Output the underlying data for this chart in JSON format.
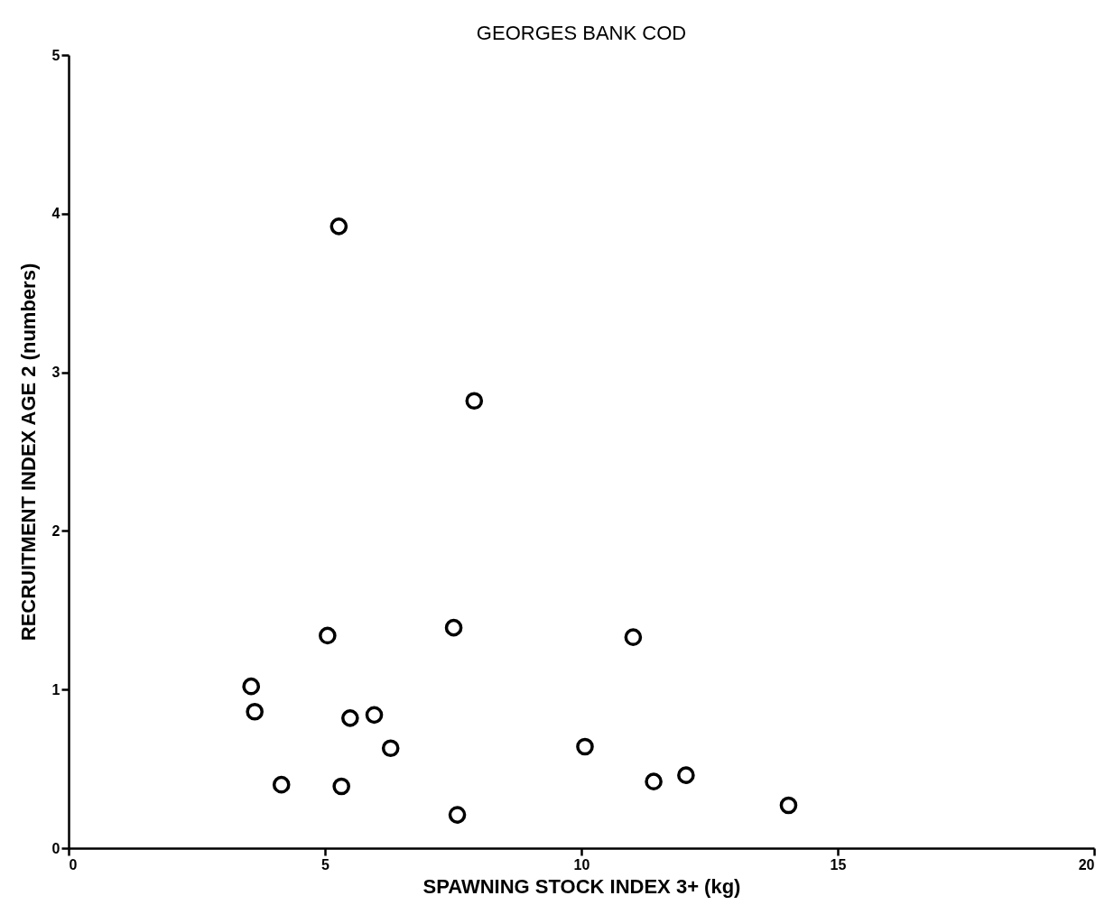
{
  "chart_data": {
    "type": "scatter",
    "title": "GEORGES BANK COD",
    "xlabel": "SPAWNING STOCK INDEX 3+ (kg)",
    "ylabel": "RECRUITMENT INDEX AGE 2 (numbers)",
    "x": [
      5.27,
      7.91,
      5.05,
      7.51,
      11.01,
      3.56,
      3.63,
      5.49,
      5.96,
      6.28,
      10.07,
      4.15,
      5.32,
      7.58,
      11.41,
      12.04,
      14.04
    ],
    "series": [
      {
        "color": "#000000",
        "values": [
          3.92,
          2.82,
          1.34,
          1.39,
          1.33,
          1.02,
          0.86,
          0.82,
          0.84,
          0.63,
          0.64,
          0.4,
          0.39,
          0.21,
          0.42,
          0.46,
          0.27
        ]
      }
    ],
    "xlim": [
      0,
      20
    ],
    "xticks": [
      0,
      5,
      10,
      15,
      20
    ],
    "ylim": [
      0,
      5
    ],
    "yticks": [
      0,
      1,
      2,
      3,
      4,
      5
    ],
    "grid": false,
    "marker": "circle"
  }
}
